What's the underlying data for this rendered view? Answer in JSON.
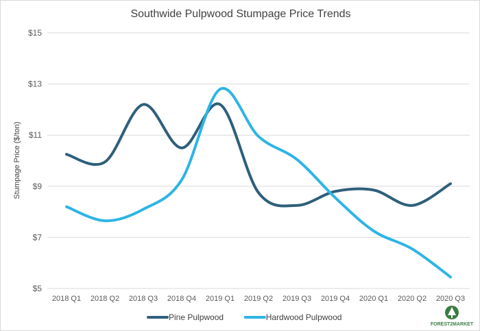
{
  "chart_data": {
    "type": "line",
    "title": "Southwide Pulpwood Stumpage Price Trends",
    "ylabel": "Stumpage Price ($/ton)",
    "xlabel": "",
    "ylim": [
      5,
      15
    ],
    "yticks": [
      5,
      7,
      9,
      11,
      13,
      15
    ],
    "ytick_labels": [
      "$5",
      "$7",
      "$9",
      "$11",
      "$13",
      "$15"
    ],
    "categories": [
      "2018 Q1",
      "2018 Q2",
      "2018 Q3",
      "2018 Q4",
      "2019 Q1",
      "2019 Q2",
      "2019 Q3",
      "2019 Q4",
      "2020 Q1",
      "2020 Q2",
      "2020 Q3"
    ],
    "series": [
      {
        "name": "Pine Pulpwood",
        "color": "#2e5f7a",
        "values": [
          10.25,
          9.95,
          12.2,
          10.5,
          12.2,
          8.75,
          8.25,
          8.8,
          8.85,
          8.25,
          9.1
        ]
      },
      {
        "name": "Hardwood Pulpwood",
        "color": "#2eb4e6",
        "values": [
          8.2,
          7.65,
          8.1,
          9.25,
          12.8,
          10.95,
          10.05,
          8.55,
          7.25,
          6.55,
          5.45
        ]
      }
    ],
    "legend_position": "bottom",
    "grid": true
  },
  "logo": {
    "text": "FOREST2MARKET",
    "icon": "tree-icon",
    "color": "#3a7d44"
  }
}
